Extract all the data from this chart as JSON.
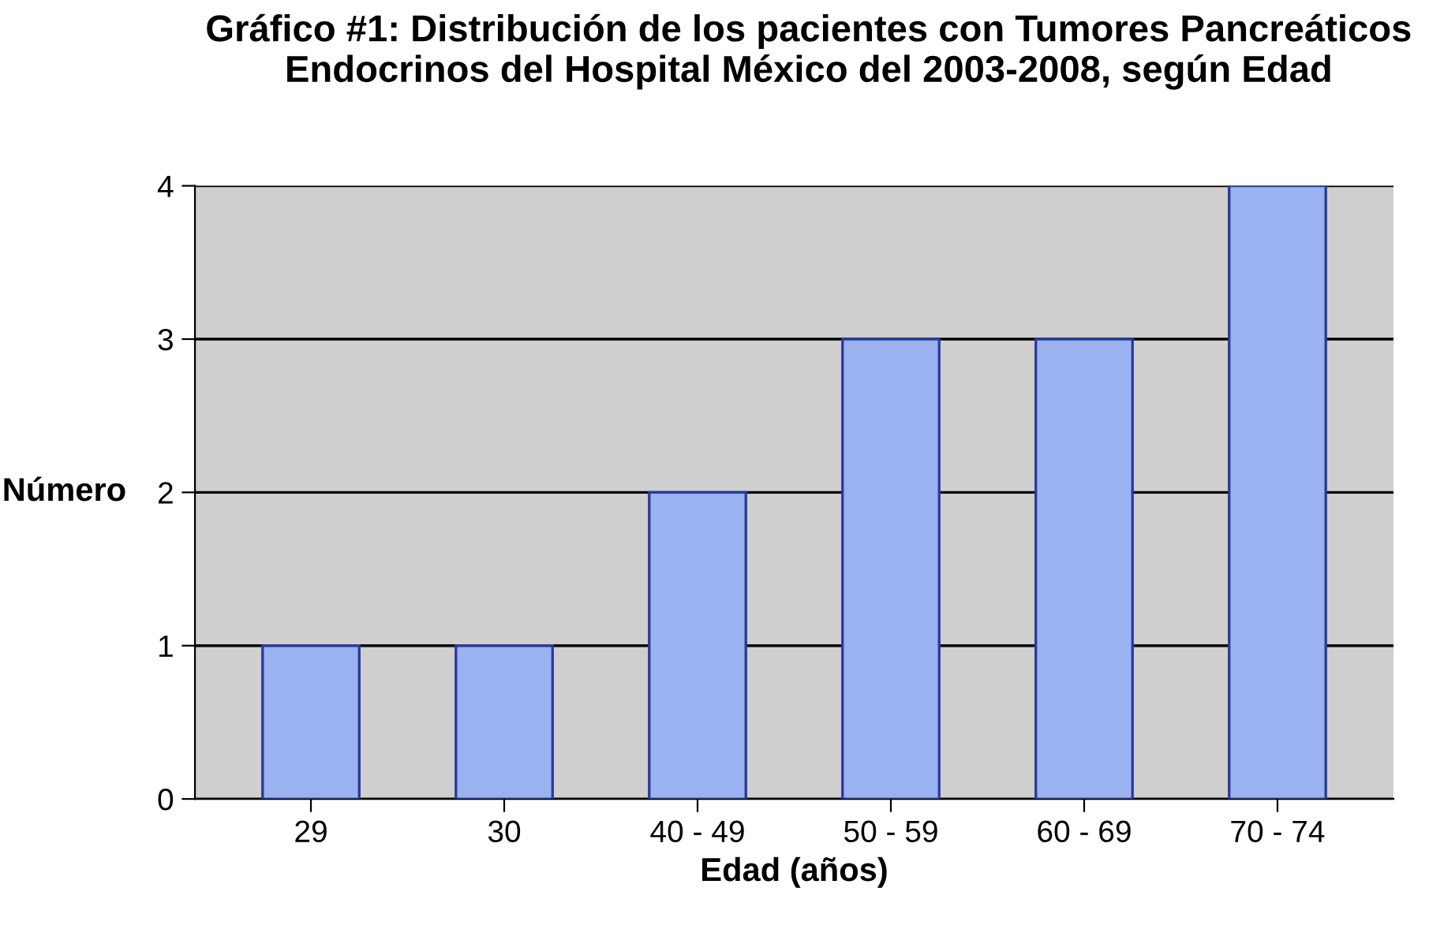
{
  "chart_data": {
    "type": "bar",
    "title": "Gráfico #1: Distribución de los pacientes con Tumores Pancreáticos Endocrinos del Hospital México del 2003-2008, según Edad",
    "xlabel": "Edad (años)",
    "ylabel": "Número",
    "categories": [
      "29",
      "30",
      "40 - 49",
      "50 - 59",
      "60 - 69",
      "70 - 74"
    ],
    "values": [
      1,
      1,
      2,
      3,
      3,
      4
    ],
    "color": "#9ab2f0",
    "ylim": [
      0,
      4
    ],
    "yticks": [
      0,
      1,
      2,
      3,
      4
    ],
    "grid": "y"
  }
}
